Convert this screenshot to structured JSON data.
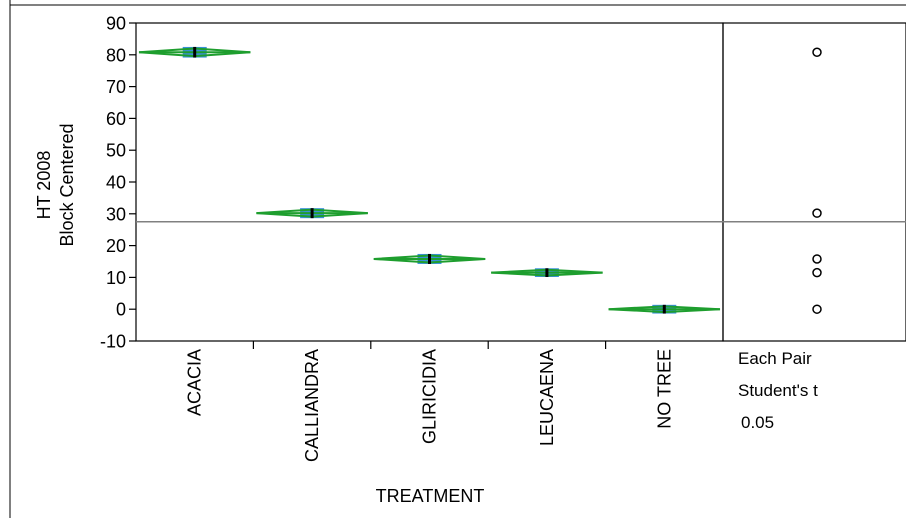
{
  "chart_data": {
    "type": "scatter",
    "ylabel_lines": [
      "HT 2008",
      "Block Centered"
    ],
    "xlabel": "TREATMENT",
    "ylim": [
      -10,
      90
    ],
    "yticks": [
      -10,
      0,
      10,
      20,
      30,
      40,
      50,
      60,
      70,
      80,
      90
    ],
    "grand_mean": 27.5,
    "categories": [
      "ACACIA",
      "CALLIANDRA",
      "GLIRICIDIA",
      "LEUCAENA",
      "NO TREE"
    ],
    "means": [
      80.8,
      30.2,
      15.8,
      11.5,
      0.0
    ],
    "ci_half_width": [
      1.2,
      1.1,
      1.1,
      0.9,
      0.9
    ],
    "comparison_circles": [
      {
        "center": 80.8
      },
      {
        "center": 30.2
      },
      {
        "center": 15.8
      },
      {
        "center": 11.5
      },
      {
        "center": 0.0
      }
    ],
    "comparison_text": [
      "Each Pair",
      "Student's t",
      "0.05"
    ],
    "colors": {
      "diamond": "#1e9e2e",
      "box": "#3a8fd9",
      "mean_line": "#000000",
      "grand_mean": "#808080"
    }
  }
}
